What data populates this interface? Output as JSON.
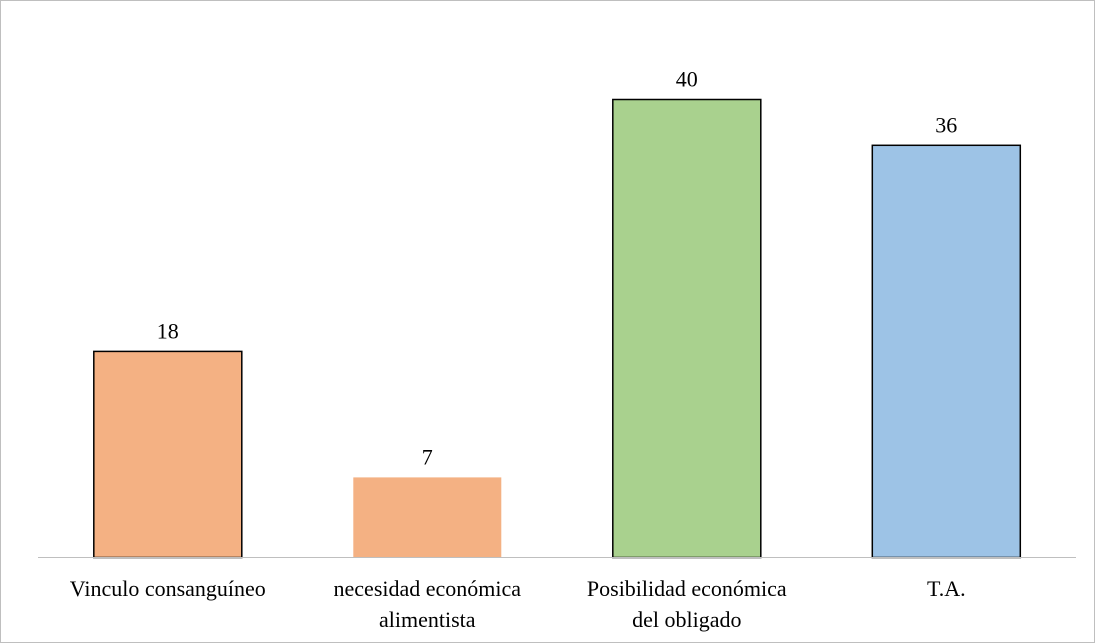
{
  "chart_data": {
    "type": "bar",
    "categories": [
      [
        "Vinculo consanguíneo"
      ],
      [
        "necesidad económica",
        "alimentista"
      ],
      [
        "Posibilidad económica",
        "del obligado"
      ],
      [
        "T.A."
      ]
    ],
    "values": [
      18,
      7,
      40,
      36
    ],
    "value_labels": [
      "18",
      "7",
      "40",
      "36"
    ],
    "colors": [
      "#F4B183",
      "#F4B183",
      "#A9D18E",
      "#9DC3E6"
    ],
    "outlined": [
      true,
      false,
      true,
      true
    ],
    "title": "",
    "xlabel": "",
    "ylabel": "",
    "ylim": [
      0,
      40
    ],
    "grid": false,
    "legend": "none"
  }
}
